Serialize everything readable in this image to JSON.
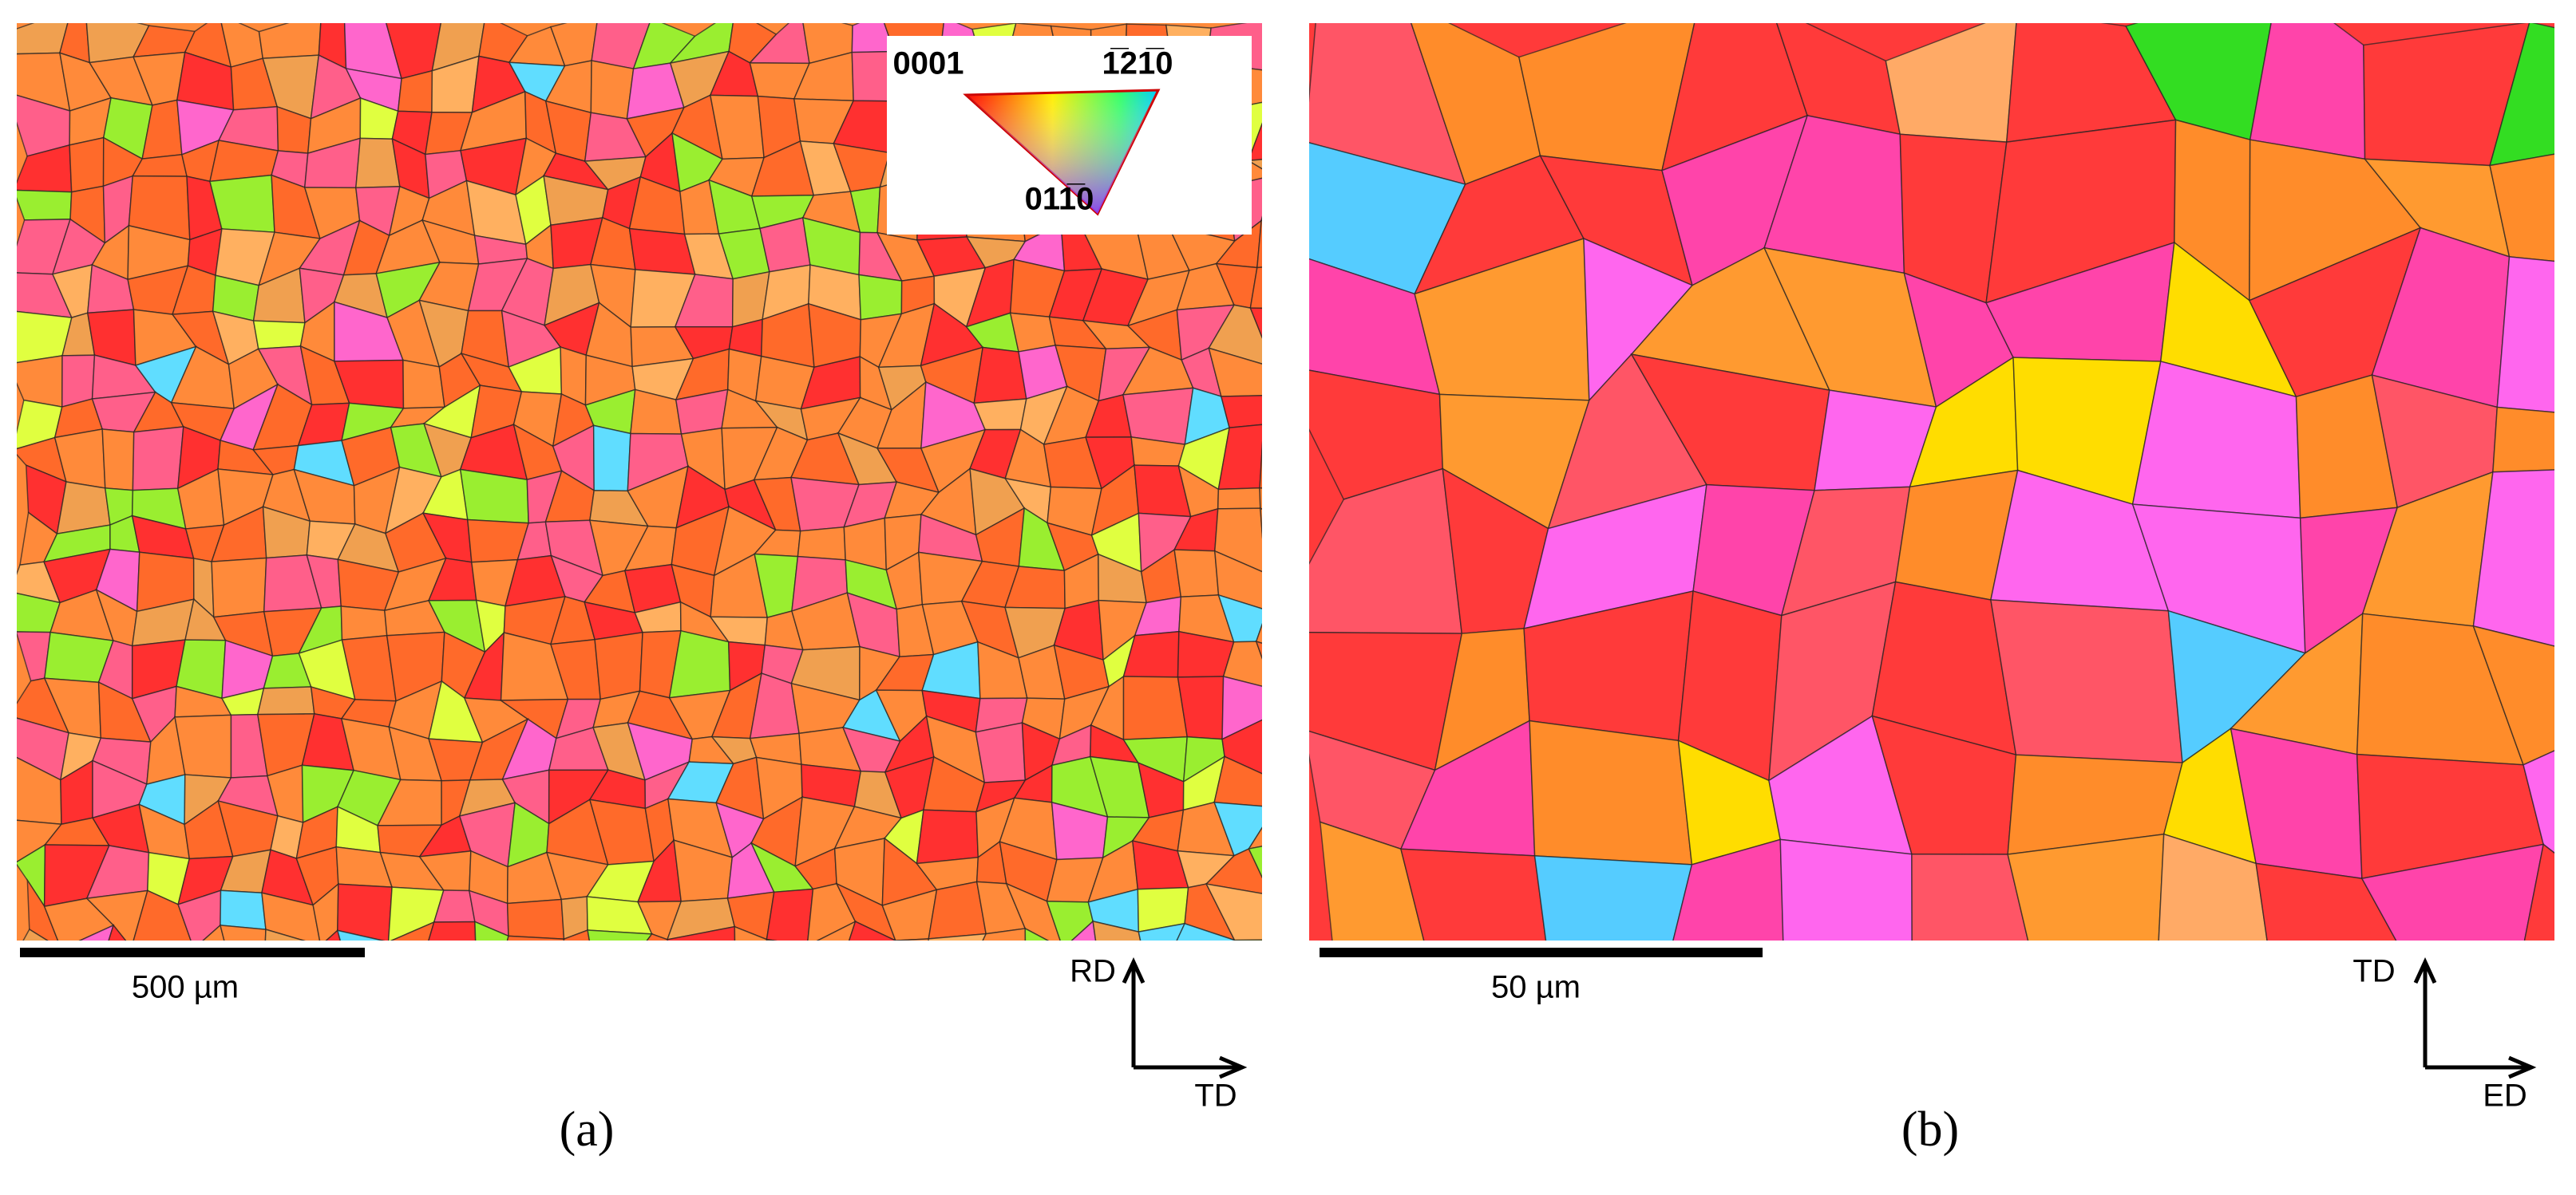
{
  "panels": [
    {
      "caption": "(a)",
      "scale_bar": "500 µm",
      "axis_up": "RD",
      "axis_right": "TD",
      "legend": {
        "corner_left": "0001",
        "corner_right": "1̅21̅0",
        "corner_bottom": "011̅0"
      }
    },
    {
      "caption": "(b)",
      "scale_bar": "50 µm",
      "axis_up": "TD",
      "axis_right": "ED"
    }
  ]
}
